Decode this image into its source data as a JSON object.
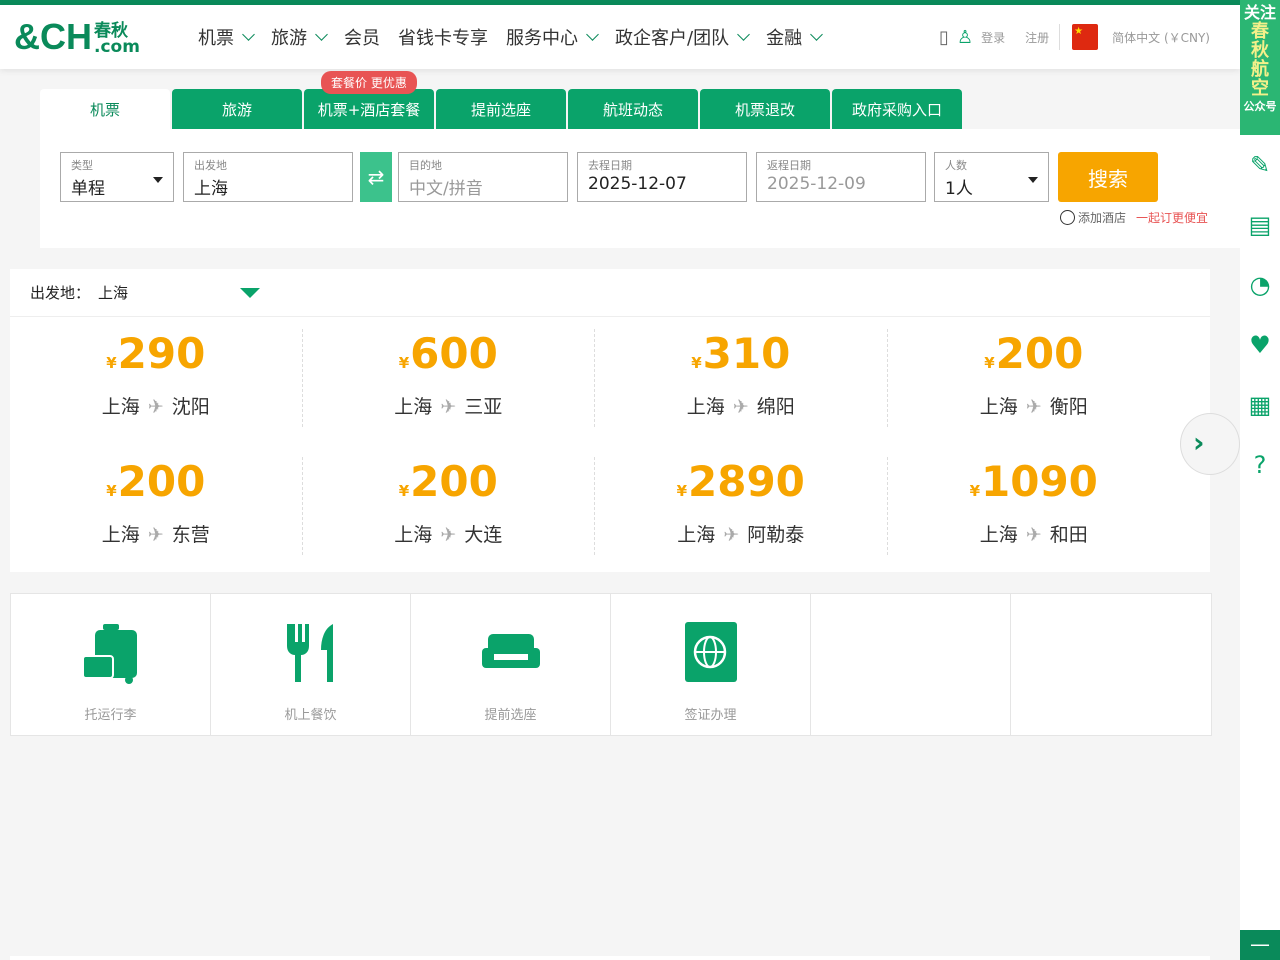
{
  "brand": {
    "logo_main": "CH",
    "logo_cn": "春秋",
    "logo_dom": ".com"
  },
  "nav": [
    {
      "label": "机票",
      "dropdown": true
    },
    {
      "label": "旅游",
      "dropdown": true
    },
    {
      "label": "会员",
      "dropdown": false
    },
    {
      "label": "省钱卡专享",
      "dropdown": false
    },
    {
      "label": "服务中心",
      "dropdown": true
    },
    {
      "label": "政企客户/团队",
      "dropdown": true
    },
    {
      "label": "金融",
      "dropdown": true
    }
  ],
  "header_right": {
    "login": "登录",
    "register": "注册",
    "language": "简体中文 (￥CNY)"
  },
  "tabs": [
    "机票",
    "旅游",
    "机票+酒店套餐",
    "提前选座",
    "航班动态",
    "机票退改",
    "政府采购入口"
  ],
  "promo_badge": "套餐价 更优惠",
  "form": {
    "type": {
      "label": "类型",
      "value": "单程"
    },
    "origin": {
      "label": "出发地",
      "value": "上海"
    },
    "destination": {
      "label": "目的地",
      "placeholder": "中文/拼音"
    },
    "depart": {
      "label": "去程日期",
      "value": "2025-12-07"
    },
    "return": {
      "label": "返程日期",
      "value": "2025-12-09"
    },
    "pax": {
      "label": "人数",
      "value": "1人"
    },
    "search": "搜索",
    "add_hotel": "添加酒店",
    "add_hotel_note": "一起订更便宜"
  },
  "deals": {
    "origin_label": "出发地：",
    "origin": "上海",
    "currency": "¥",
    "items": [
      {
        "price": "290",
        "from": "上海",
        "to": "沈阳"
      },
      {
        "price": "600",
        "from": "上海",
        "to": "三亚"
      },
      {
        "price": "310",
        "from": "上海",
        "to": "绵阳"
      },
      {
        "price": "200",
        "from": "上海",
        "to": "衡阳"
      },
      {
        "price": "200",
        "from": "上海",
        "to": "东营"
      },
      {
        "price": "200",
        "from": "上海",
        "to": "大连"
      },
      {
        "price": "2890",
        "from": "上海",
        "to": "阿勒泰"
      },
      {
        "price": "1090",
        "from": "上海",
        "to": "和田"
      }
    ]
  },
  "services": [
    "托运行李",
    "机上餐饮",
    "提前选座",
    "签证办理"
  ],
  "sidebar": {
    "follow_top": "关注",
    "follow_name": "春秋航空",
    "follow_bottom": "公众号",
    "icons": [
      "pencil-icon",
      "chat-icon",
      "history-icon",
      "heart-icon",
      "qrcode-icon",
      "help-icon"
    ]
  },
  "colors": {
    "brand_green": "#0a8a5a",
    "tab_green": "#0aa36a",
    "price_orange": "#f7a500",
    "promo_red": "#e85454"
  }
}
